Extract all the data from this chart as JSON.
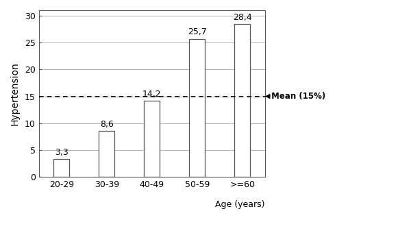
{
  "categories": [
    "20-29",
    "30-39",
    "40-49",
    "50-59",
    ">=60"
  ],
  "values": [
    3.3,
    8.6,
    14.2,
    25.7,
    28.4
  ],
  "bar_color": "#ffffff",
  "bar_edgecolor": "#555555",
  "ylabel": "Hypertension",
  "xlabel": "Age (years)",
  "ylim": [
    0,
    31
  ],
  "yticks": [
    0,
    5,
    10,
    15,
    20,
    25,
    30
  ],
  "mean_value": 15,
  "mean_label": "Mean (15%)",
  "mean_color": "#000000",
  "value_labels": [
    "3,3",
    "8,6",
    "14,2",
    "25,7",
    "28,4"
  ],
  "background_color": "#ffffff",
  "bar_width": 0.35,
  "grid_color": "#aaaaaa",
  "label_fontsize": 9,
  "tick_fontsize": 9,
  "ylabel_fontsize": 10
}
